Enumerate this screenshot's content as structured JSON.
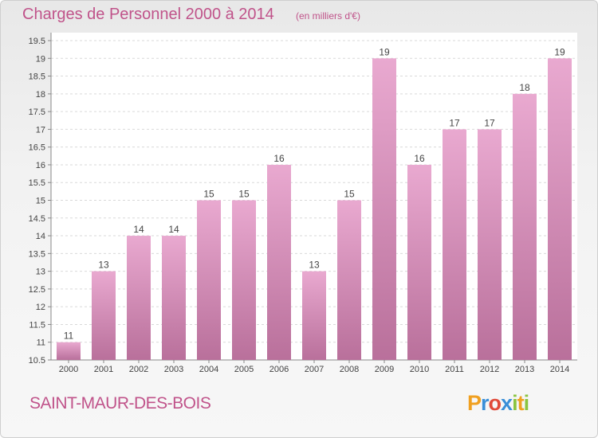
{
  "header": {
    "title": "Charges de Personnel 2000 à 2014",
    "subtitle": "(en milliers d'€)"
  },
  "footer": {
    "place": "SAINT-MAUR-DES-BOIS",
    "brand": "Proxiti"
  },
  "colors": {
    "accent": "#c0538a",
    "bar_top": "#e9a9d0",
    "bar_bottom": "#b9709b",
    "logo_letters": [
      "#f0a020",
      "#3a8fd8",
      "#e04a3a",
      "#3a8fd8",
      "#8bc43f",
      "#f0a020",
      "#8bc43f"
    ]
  },
  "chart_data": {
    "type": "bar",
    "categories": [
      "2000",
      "2001",
      "2002",
      "2003",
      "2004",
      "2005",
      "2006",
      "2007",
      "2008",
      "2009",
      "2010",
      "2011",
      "2012",
      "2013",
      "2014"
    ],
    "values": [
      11,
      13,
      14,
      14,
      15,
      15,
      16,
      13,
      15,
      19,
      16,
      17,
      17,
      18,
      19
    ],
    "title": "Charges de Personnel 2000 à 2014",
    "ylim": [
      10.5,
      19.5
    ],
    "yticks": [
      10.5,
      11,
      11.5,
      12,
      12.5,
      13,
      13.5,
      14,
      14.5,
      15,
      15.5,
      16,
      16.5,
      17,
      17.5,
      18,
      18.5,
      19,
      19.5
    ],
    "grid": true
  }
}
